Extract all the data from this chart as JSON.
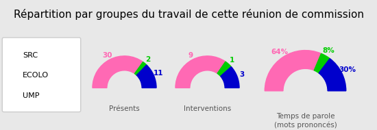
{
  "title": "Répartition par groupes du travail de cette réunion de commission",
  "legend": [
    "SRC",
    "ECOLO",
    "UMP"
  ],
  "colors": [
    "#FF69B4",
    "#00CC00",
    "#0000CC"
  ],
  "charts": [
    {
      "label": "Présents",
      "values": [
        30,
        2,
        11
      ],
      "annotations": [
        "30",
        "2",
        "11"
      ]
    },
    {
      "label": "Interventions",
      "values": [
        9,
        1,
        3
      ],
      "annotations": [
        "9",
        "1",
        "3"
      ]
    },
    {
      "label": "Temps de parole\n(mots prononcés)",
      "values": [
        64,
        8,
        30
      ],
      "annotations": [
        "64%",
        "8%",
        "30%"
      ]
    }
  ],
  "background_color": "#E8E8E8",
  "title_fontsize": 11,
  "annotation_colors": [
    "#FF69B4",
    "#00CC00",
    "#0000CC"
  ]
}
